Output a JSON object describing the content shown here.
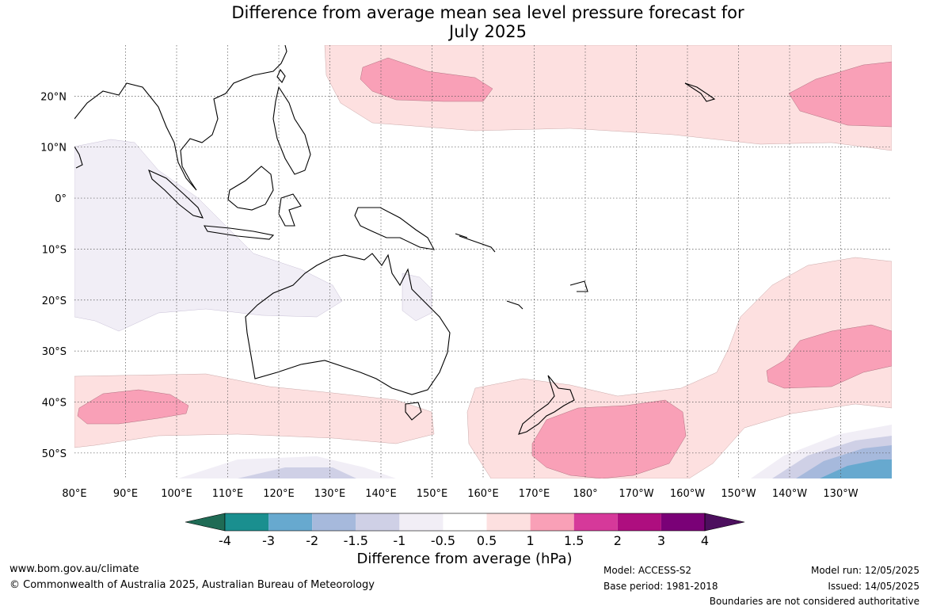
{
  "title": {
    "line1": "Difference from average mean sea level pressure forecast for",
    "line2": "July 2025"
  },
  "map": {
    "lat_labels": [
      "20°N",
      "10°N",
      "0°",
      "10°S",
      "20°S",
      "30°S",
      "40°S",
      "50°S"
    ],
    "lon_labels": [
      "80°E",
      "90°E",
      "100°E",
      "110°E",
      "120°E",
      "130°E",
      "140°E",
      "150°E",
      "160°E",
      "170°E",
      "180°",
      "170°W",
      "160°W",
      "150°W",
      "140°W",
      "130°W"
    ],
    "lat_range": [
      -55,
      30
    ],
    "lon_range": [
      80,
      240
    ]
  },
  "colorbar": {
    "title": "Difference from average (hPa)",
    "tick_labels": [
      "-4",
      "-3",
      "-2",
      "-1.5",
      "-1",
      "-0.5",
      "0.5",
      "1",
      "1.5",
      "2",
      "3",
      "4"
    ],
    "colors": [
      "#1f6b55",
      "#1a8f8f",
      "#67a9cf",
      "#a6b9dc",
      "#cfd0e6",
      "#f1eef6",
      "#ffffff",
      "#fde0e0",
      "#f9a0b7",
      "#d6399a",
      "#ae0e7f",
      "#7a0177",
      "#4d0f5e"
    ]
  },
  "footer": {
    "website": "www.bom.gov.au/climate",
    "copyright": "© Commonwealth of Australia 2025, Australian Bureau of Meteorology",
    "model": "Model: ACCESS-S2",
    "base_period": "Base period: 1981-2018",
    "model_run": "Model run: 12/05/2025",
    "issued": "Issued: 14/05/2025",
    "disclaimer": "Boundaries are not considered authoritative"
  }
}
